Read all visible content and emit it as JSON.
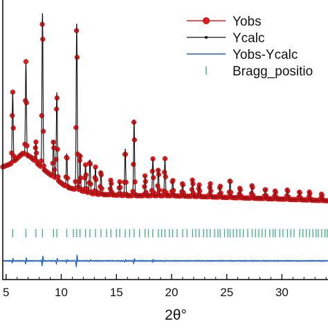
{
  "chart_data": {
    "type": "line",
    "xlabel": "2θ°",
    "ylabel": "",
    "title": "",
    "xlim": [
      4.7,
      34.3
    ],
    "x_ticks": [
      5,
      10,
      15,
      20,
      25,
      30
    ],
    "grid": false,
    "legend_position": "top-right",
    "legend": [
      {
        "label": "Yobs",
        "color": "#e8191c",
        "marker": "circle"
      },
      {
        "label": "Ycalc",
        "color": "#111111",
        "marker": "dot"
      },
      {
        "label": "Yobs-Ycalc",
        "color": "#1f5fbf",
        "marker": "line"
      },
      {
        "label": "Bragg_positio",
        "color": "#3bb07a",
        "marker": "tick"
      }
    ],
    "background": [
      [
        4.7,
        0.24
      ],
      [
        5.5,
        0.26
      ],
      [
        6.5,
        0.32
      ],
      [
        7.2,
        0.3
      ],
      [
        8.5,
        0.22
      ],
      [
        10.5,
        0.12
      ],
      [
        13.0,
        0.08
      ],
      [
        16.0,
        0.07
      ],
      [
        20.0,
        0.07
      ],
      [
        25.0,
        0.06
      ],
      [
        30.0,
        0.05
      ],
      [
        34.3,
        0.04
      ]
    ],
    "peaks": [
      {
        "x": 5.6,
        "height": 0.42
      },
      {
        "x": 6.8,
        "height": 0.55
      },
      {
        "x": 7.7,
        "height": 0.12
      },
      {
        "x": 8.3,
        "height": 0.93
      },
      {
        "x": 9.3,
        "height": 0.22
      },
      {
        "x": 9.6,
        "height": 0.52
      },
      {
        "x": 10.5,
        "height": 0.2
      },
      {
        "x": 11.4,
        "height": 1.0
      },
      {
        "x": 11.7,
        "height": 0.22
      },
      {
        "x": 12.2,
        "height": 0.16
      },
      {
        "x": 12.6,
        "height": 0.2
      },
      {
        "x": 13.1,
        "height": 0.16
      },
      {
        "x": 13.6,
        "height": 0.14
      },
      {
        "x": 14.5,
        "height": 0.09
      },
      {
        "x": 15.3,
        "height": 0.08
      },
      {
        "x": 15.8,
        "height": 0.28
      },
      {
        "x": 16.6,
        "height": 0.45
      },
      {
        "x": 17.6,
        "height": 0.12
      },
      {
        "x": 18.3,
        "height": 0.22
      },
      {
        "x": 18.8,
        "height": 0.16
      },
      {
        "x": 19.4,
        "height": 0.22
      },
      {
        "x": 20.1,
        "height": 0.1
      },
      {
        "x": 21.0,
        "height": 0.08
      },
      {
        "x": 21.9,
        "height": 0.1
      },
      {
        "x": 22.5,
        "height": 0.07
      },
      {
        "x": 23.5,
        "height": 0.08
      },
      {
        "x": 24.4,
        "height": 0.07
      },
      {
        "x": 25.3,
        "height": 0.11
      },
      {
        "x": 26.2,
        "height": 0.06
      },
      {
        "x": 27.3,
        "height": 0.08
      },
      {
        "x": 28.5,
        "height": 0.06
      },
      {
        "x": 29.4,
        "height": 0.05
      },
      {
        "x": 30.5,
        "height": 0.06
      },
      {
        "x": 31.6,
        "height": 0.05
      },
      {
        "x": 32.5,
        "height": 0.05
      },
      {
        "x": 33.6,
        "height": 0.04
      }
    ],
    "difference": [
      {
        "x": 5.6,
        "amplitude": 0.1
      },
      {
        "x": 6.8,
        "amplitude": 0.14
      },
      {
        "x": 8.3,
        "amplitude": 0.25
      },
      {
        "x": 9.6,
        "amplitude": 0.14
      },
      {
        "x": 10.5,
        "amplitude": 0.06
      },
      {
        "x": 11.4,
        "amplitude": 0.3
      },
      {
        "x": 12.6,
        "amplitude": 0.06
      },
      {
        "x": 15.8,
        "amplitude": 0.06
      },
      {
        "x": 16.6,
        "amplitude": 0.1
      },
      {
        "x": 18.3,
        "amplitude": 0.06
      },
      {
        "x": 19.4,
        "amplitude": 0.05
      }
    ],
    "bragg_positions": [
      5.6,
      6.8,
      7.7,
      8.3,
      9.3,
      9.6,
      10.5,
      11.1,
      11.4,
      11.7,
      12.2,
      12.6,
      13.1,
      13.6,
      14.1,
      14.5,
      15.0,
      15.3,
      15.8,
      16.2,
      16.6,
      17.1,
      17.6,
      17.9,
      18.3,
      18.8,
      19.1,
      19.4,
      19.8,
      20.1,
      20.5,
      21.0,
      21.4,
      21.9,
      22.2,
      22.5,
      22.9,
      23.2,
      23.5,
      23.9,
      24.2,
      24.4,
      24.8,
      25.1,
      25.3,
      25.6,
      25.9,
      26.2,
      26.5,
      26.9,
      27.3,
      27.6,
      27.9,
      28.2,
      28.5,
      28.9,
      29.2,
      29.4,
      29.8,
      30.1,
      30.5,
      30.8,
      31.1,
      31.6,
      31.9,
      32.2,
      32.5,
      32.8,
      33.1,
      33.3,
      33.6,
      33.9,
      34.1
    ]
  }
}
